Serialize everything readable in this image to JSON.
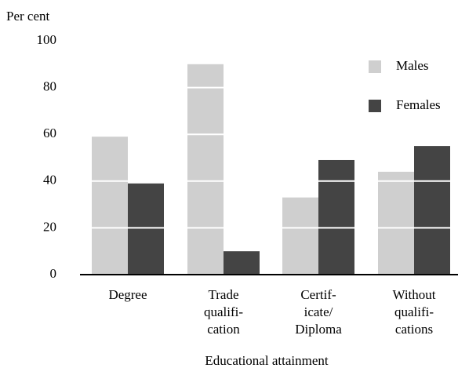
{
  "chart_data": {
    "type": "bar",
    "y_label": "Per cent",
    "x_label": "Educational attainment",
    "categories": [
      [
        "Degree"
      ],
      [
        "Trade",
        "qualifi-",
        "cation"
      ],
      [
        "Certif-",
        "icate/",
        "Diploma"
      ],
      [
        "Without",
        "qualifi-",
        "cations"
      ]
    ],
    "series": [
      {
        "name": "Males",
        "color": "#cfcfcf",
        "values": [
          59,
          90,
          33,
          44
        ]
      },
      {
        "name": "Females",
        "color": "#444444",
        "values": [
          39,
          10,
          49,
          55
        ]
      }
    ],
    "ylim": [
      0,
      100
    ],
    "yticks": [
      0,
      20,
      40,
      60,
      80,
      100
    ],
    "grid": true,
    "legend": "top-right"
  }
}
